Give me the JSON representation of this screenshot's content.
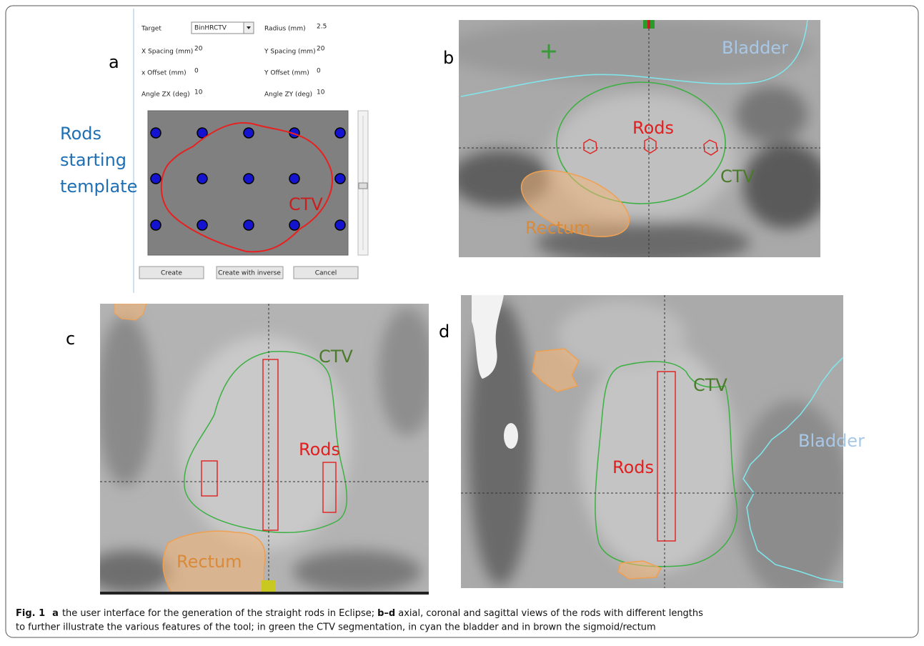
{
  "panels": {
    "a": {
      "label": "a",
      "form": [
        {
          "label": "Target",
          "value": "BinHRCTV"
        },
        {
          "label": "Radius (mm)",
          "value": "2.5"
        },
        {
          "label": "X Spacing (mm)",
          "value": "20"
        },
        {
          "label": "Y Spacing (mm)",
          "value": "20"
        },
        {
          "label": "x Offset (mm)",
          "value": "0"
        },
        {
          "label": "Y Offset (mm)",
          "value": "0"
        },
        {
          "label": "Angle ZX (deg)",
          "value": "10"
        },
        {
          "label": "Angle ZY (deg)",
          "value": "10"
        }
      ],
      "buttons": [
        "Create",
        "Create with inverse",
        "Cancel"
      ],
      "annotation": [
        "Rods",
        "starting",
        "template"
      ],
      "structure_label": "CTV"
    },
    "b": {
      "label": "b",
      "bladder": "Bladder",
      "rods": "Rods",
      "ctv": "CTV",
      "rectum": "Rectum"
    },
    "c": {
      "label": "c",
      "ctv": "CTV",
      "rods": "Rods",
      "rectum": "Rectum"
    },
    "d": {
      "label": "d",
      "ctv": "CTV",
      "rods": "Rods",
      "bladder": "Bladder"
    }
  },
  "caption": {
    "figure": "Fig. 1",
    "a": "a",
    "a_text": "the user interface for the generation of the straight rods in Eclipse;",
    "bd": "b–d",
    "bd_text_1": "axial, coronal and sagittal views of the rods with different lengths",
    "bd_text_2": "to further illustrate the various features of the tool; in green the CTV segmentation, in cyan the bladder and in brown the sigmoid/rectum"
  }
}
